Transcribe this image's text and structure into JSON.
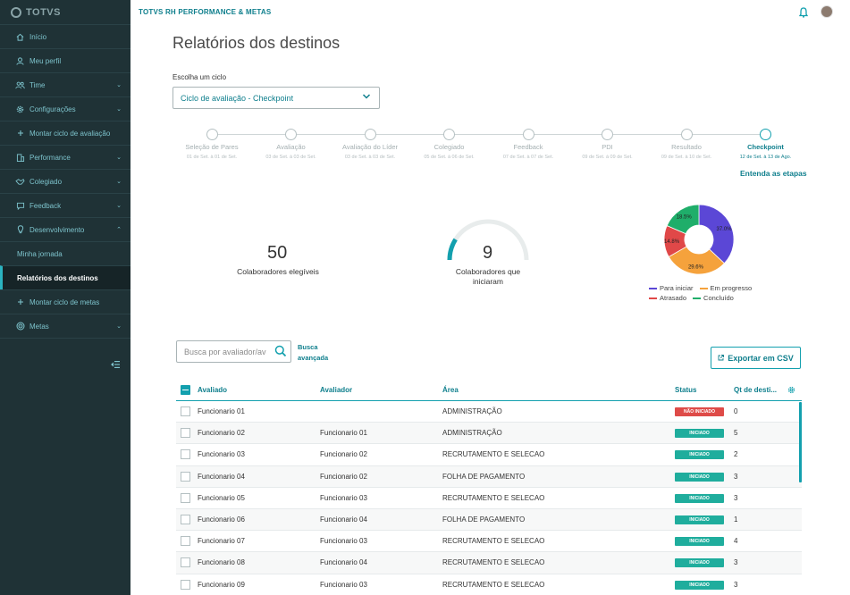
{
  "brand": {
    "logo_text": "TOTVS"
  },
  "sidebar": {
    "items": [
      {
        "icon": "home-icon",
        "label": "Início",
        "chevron": ""
      },
      {
        "icon": "user-icon",
        "label": "Meu perfil",
        "chevron": ""
      },
      {
        "icon": "team-icon",
        "label": "Time",
        "chevron": "⌄"
      },
      {
        "icon": "gear-icon",
        "label": "Configurações",
        "chevron": "⌄"
      },
      {
        "icon": "plus-icon",
        "label": "Montar ciclo de avaliação",
        "chevron": ""
      },
      {
        "icon": "building-icon",
        "label": "Performance",
        "chevron": "⌄"
      },
      {
        "icon": "handshake-icon",
        "label": "Colegiado",
        "chevron": "⌄"
      },
      {
        "icon": "chat-icon",
        "label": "Feedback",
        "chevron": "⌄"
      },
      {
        "icon": "bulb-icon",
        "label": "Desenvolvimento",
        "chevron": "⌃"
      }
    ],
    "sub_items": [
      "Minha jornada",
      "Relatórios dos destinos"
    ],
    "items_after": [
      {
        "icon": "plus-icon",
        "label": "Montar ciclo de metas",
        "chevron": ""
      },
      {
        "icon": "target-icon",
        "label": "Metas",
        "chevron": "⌄"
      }
    ]
  },
  "header": {
    "app_title": "TOTVS RH PERFORMANCE & METAS"
  },
  "main": {
    "title": "Relatórios dos destinos",
    "cycle_label": "Escolha um ciclo",
    "cycle_value": "Ciclo de avaliação - Checkpoint",
    "steps": [
      {
        "name": "Seleção de Pares",
        "date": "01 de Set. à 01 de Set."
      },
      {
        "name": "Avaliação",
        "date": "03 de Set. à 03 de Set."
      },
      {
        "name": "Avaliação do Líder",
        "date": "03 de Set. à 03 de Set."
      },
      {
        "name": "Colegiado",
        "date": "05 de Set. à 06 de Set."
      },
      {
        "name": "Feedback",
        "date": "07 de Set. à 07 de Set."
      },
      {
        "name": "PDI",
        "date": "09 de Set. à 09 de Set."
      },
      {
        "name": "Resultado",
        "date": "09 de Set. à 10 de Set."
      },
      {
        "name": "Checkpoint",
        "date": "12 de Set. à 13 de Ago."
      }
    ],
    "steps_link": "Entenda as etapas",
    "eligible": {
      "value": "50",
      "label": "Colaboradores elegíveis"
    },
    "started": {
      "value": "9",
      "label_1": "Colaboradores que",
      "label_2": "iniciaram",
      "fraction": 0.18
    },
    "donut": {
      "slices": [
        {
          "name": "Para iniciar",
          "pct": 37.0,
          "label": "37.0%",
          "color": "#5b47d6"
        },
        {
          "name": "Em progresso",
          "pct": 29.6,
          "label": "29.6%",
          "color": "#f5a23c"
        },
        {
          "name": "Atrasado",
          "pct": 14.8,
          "label": "14.8%",
          "color": "#e04848"
        },
        {
          "name": "Concluído",
          "pct": 18.5,
          "label": "18.5%",
          "color": "#1fae6a"
        }
      ]
    },
    "search_placeholder": "Busca por avaliador/avaliado",
    "adv_search_1": "Busca",
    "adv_search_2": "avançada",
    "export_label": "Exportar em CSV",
    "table": {
      "headers": [
        "Avaliado",
        "Avaliador",
        "Área",
        "Status",
        "Qt de desti..."
      ],
      "rows": [
        {
          "avaliado": "Funcionario 01",
          "avaliador": "",
          "area": "ADMINISTRAÇÃO",
          "status": "NÃO INICIADO",
          "qt": "0"
        },
        {
          "avaliado": "Funcionario 02",
          "avaliador": "Funcionario 01",
          "area": "ADMINISTRAÇÃO",
          "status": "INICIADO",
          "qt": "5"
        },
        {
          "avaliado": "Funcionario 03",
          "avaliador": "Funcionario 02",
          "area": "RECRUTAMENTO E SELECAO",
          "status": "INICIADO",
          "qt": "2"
        },
        {
          "avaliado": "Funcionario 04",
          "avaliador": "Funcionario 02",
          "area": "FOLHA DE PAGAMENTO",
          "status": "INICIADO",
          "qt": "3"
        },
        {
          "avaliado": "Funcionario 05",
          "avaliador": "Funcionario 03",
          "area": "RECRUTAMENTO E SELECAO",
          "status": "INICIADO",
          "qt": "3"
        },
        {
          "avaliado": "Funcionario 06",
          "avaliador": "Funcionario 04",
          "area": "FOLHA DE PAGAMENTO",
          "status": "INICIADO",
          "qt": "1"
        },
        {
          "avaliado": "Funcionario 07",
          "avaliador": "Funcionario 03",
          "area": "RECRUTAMENTO E SELECAO",
          "status": "INICIADO",
          "qt": "4"
        },
        {
          "avaliado": "Funcionario 08",
          "avaliador": "Funcionario 04",
          "area": "RECRUTAMENTO E SELECAO",
          "status": "INICIADO",
          "qt": "3"
        },
        {
          "avaliado": "Funcionario 09",
          "avaliador": "Funcionario 03",
          "area": "RECRUTAMENTO E SELECAO",
          "status": "INICIADO",
          "qt": "3"
        }
      ]
    }
  },
  "colors": {
    "accent": "#13a0ae",
    "sidebar_bg": "#1f3236",
    "status_ok": "#1fad9d",
    "status_no": "#de4b48"
  }
}
